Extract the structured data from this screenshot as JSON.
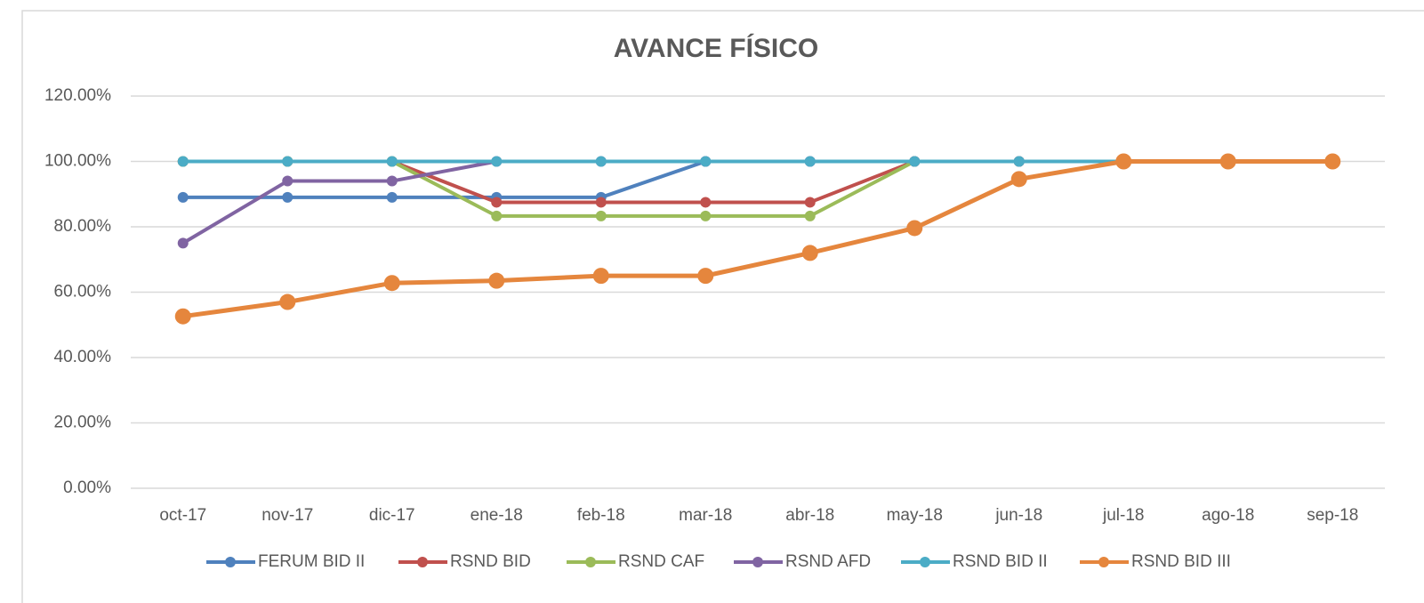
{
  "chart_data": {
    "type": "line",
    "title": "AVANCE FÍSICO",
    "categories": [
      "oct-17",
      "nov-17",
      "dic-17",
      "ene-18",
      "feb-18",
      "mar-18",
      "abr-18",
      "may-18",
      "jun-18",
      "jul-18",
      "ago-18",
      "sep-18"
    ],
    "series": [
      {
        "name": "FERUM BID II",
        "color": "#4f81bd",
        "values": [
          89,
          89,
          89,
          89,
          89,
          100,
          100,
          100,
          100,
          100,
          null,
          null
        ]
      },
      {
        "name": "RSND BID",
        "color": "#c0504d",
        "values": [
          100,
          100,
          100,
          87.5,
          87.5,
          87.5,
          87.5,
          100,
          100,
          100,
          null,
          null
        ]
      },
      {
        "name": "RSND CAF",
        "color": "#9bbb59",
        "values": [
          100,
          100,
          100,
          83.3,
          83.3,
          83.3,
          83.3,
          100,
          100,
          100,
          null,
          null
        ]
      },
      {
        "name": "RSND AFD",
        "color": "#8064a2",
        "values": [
          75,
          94,
          94,
          100,
          100,
          100,
          100,
          100,
          100,
          100,
          null,
          null
        ]
      },
      {
        "name": "RSND BID II",
        "color": "#4bacc6",
        "values": [
          100,
          100,
          100,
          100,
          100,
          100,
          100,
          100,
          100,
          100,
          null,
          null
        ]
      },
      {
        "name": "RSND BID III",
        "color": "#e5863d",
        "values": [
          52.6,
          57,
          62.8,
          63.5,
          65,
          65,
          72,
          79.6,
          94.6,
          100,
          100,
          100
        ]
      }
    ],
    "ylim": [
      0,
      120
    ],
    "yticks": [
      {
        "value": 0,
        "label": "0.00%"
      },
      {
        "value": 20,
        "label": "20.00%"
      },
      {
        "value": 40,
        "label": "40.00%"
      },
      {
        "value": 60,
        "label": "60.00%"
      },
      {
        "value": 80,
        "label": "80.00%"
      },
      {
        "value": 100,
        "label": "100.00%"
      },
      {
        "value": 120,
        "label": "120.00%"
      }
    ],
    "grid": true,
    "legend": "bottom"
  }
}
